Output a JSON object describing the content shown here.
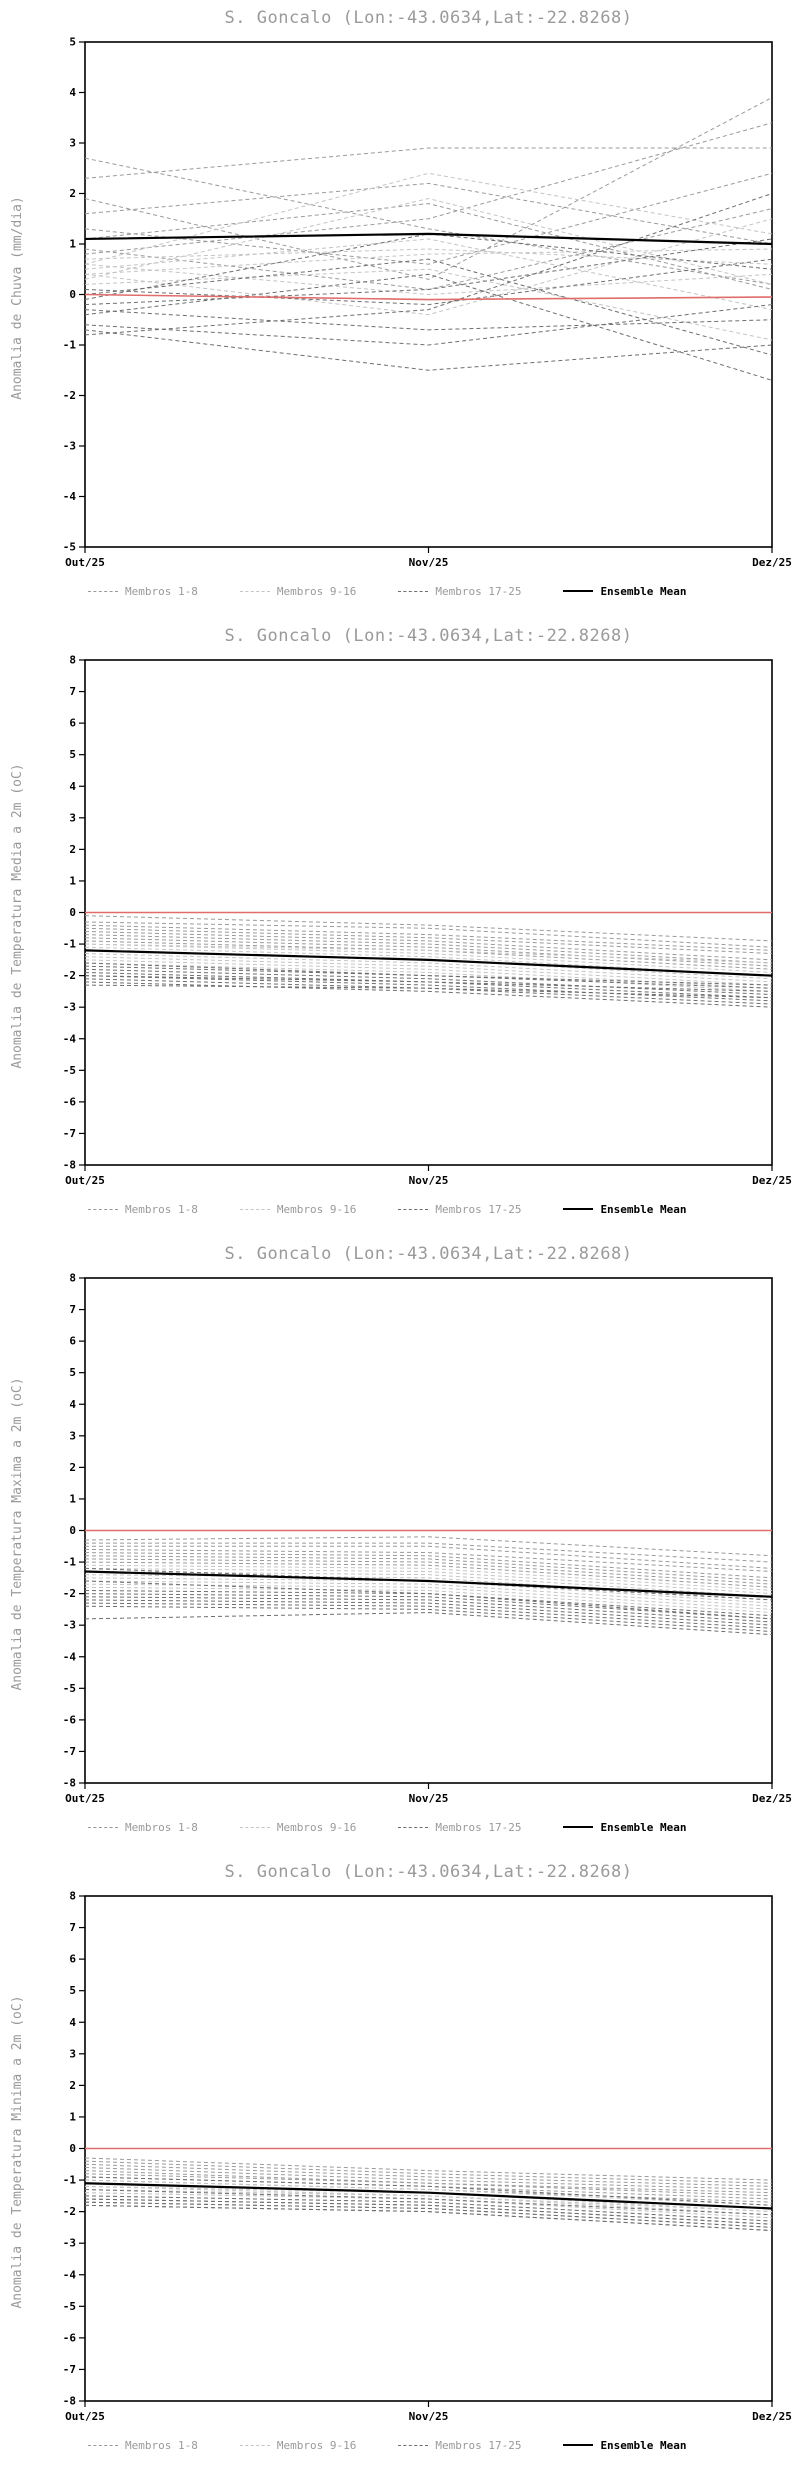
{
  "colors": {
    "title": "#9a9a9a",
    "axis": "#000000",
    "members_1_8": "#9a9a9a",
    "members_9_16": "#c4c4c4",
    "members_17_25": "#6e6e6e",
    "ensemble_mean": "#000000",
    "reference_line": "#e06c6c"
  },
  "chart_data": [
    {
      "type": "line",
      "title": "S. Goncalo (Lon:-43.0634,Lat:-22.8268)",
      "ylabel": "Anomalia de Chuva (mm/dia)",
      "xlabel": "",
      "x_ticklabels": [
        "Out/25",
        "Nov/25",
        "Dez/25"
      ],
      "ylim": [
        -5,
        5
      ],
      "ytick_step": 1,
      "grid": false,
      "legend_position": "bottom",
      "reference_line": [
        0.0,
        -0.1,
        -0.05
      ],
      "ensemble_mean": [
        1.1,
        1.2,
        1.0
      ],
      "legend": [
        {
          "label": "Membros 1-8"
        },
        {
          "label": "Membros 9-16"
        },
        {
          "label": "Membros 17-25"
        },
        {
          "label": "Ensemble Mean"
        }
      ],
      "members": {
        "members_1_8": [
          [
            2.7,
            1.3,
            0.2
          ],
          [
            2.3,
            2.9,
            2.9
          ],
          [
            1.9,
            0.3,
            3.9
          ],
          [
            1.6,
            2.2,
            1.0
          ],
          [
            1.3,
            0.6,
            2.4
          ],
          [
            1.1,
            1.8,
            0.1
          ],
          [
            0.9,
            0.1,
            1.7
          ],
          [
            0.8,
            1.5,
            3.4
          ]
        ],
        "members_9_16": [
          [
            0.7,
            0.9,
            0.6
          ],
          [
            0.6,
            2.4,
            1.2
          ],
          [
            0.6,
            0.0,
            0.4
          ],
          [
            0.5,
            1.1,
            -0.3
          ],
          [
            0.4,
            -0.4,
            1.5
          ],
          [
            0.4,
            0.8,
            0.9
          ],
          [
            0.3,
            1.9,
            0.2
          ],
          [
            0.2,
            0.5,
            -0.9
          ]
        ],
        "members_17_25": [
          [
            0.1,
            -0.2,
            0.7
          ],
          [
            0.0,
            0.7,
            -1.2
          ],
          [
            -0.1,
            1.2,
            0.5
          ],
          [
            -0.2,
            0.1,
            1.1
          ],
          [
            -0.3,
            -0.7,
            -0.5
          ],
          [
            -0.4,
            0.4,
            -1.7
          ],
          [
            -0.6,
            -1.0,
            -0.2
          ],
          [
            -0.7,
            -1.5,
            -1.0
          ],
          [
            -0.8,
            -0.3,
            2.0
          ]
        ]
      }
    },
    {
      "type": "line",
      "title": "S. Goncalo (Lon:-43.0634,Lat:-22.8268)",
      "ylabel": "Anomalia de Temperatura Media a 2m (oC)",
      "xlabel": "",
      "x_ticklabels": [
        "Out/25",
        "Nov/25",
        "Dez/25"
      ],
      "ylim": [
        -8,
        8
      ],
      "ytick_step": 1,
      "grid": false,
      "legend_position": "bottom",
      "reference_line": [
        0.0,
        0.0,
        0.0
      ],
      "ensemble_mean": [
        -1.2,
        -1.5,
        -2.0
      ],
      "legend": [
        {
          "label": "Membros 1-8"
        },
        {
          "label": "Membros 9-16"
        },
        {
          "label": "Membros 17-25"
        },
        {
          "label": "Ensemble Mean"
        }
      ],
      "members": {
        "members_1_8": [
          [
            -0.1,
            -0.4,
            -0.9
          ],
          [
            -0.3,
            -0.5,
            -1.1
          ],
          [
            -0.4,
            -0.7,
            -1.2
          ],
          [
            -0.5,
            -0.8,
            -1.3
          ],
          [
            -0.6,
            -0.9,
            -1.5
          ],
          [
            -0.7,
            -1.0,
            -1.6
          ],
          [
            -0.8,
            -1.1,
            -1.7
          ],
          [
            -0.9,
            -1.2,
            -1.8
          ]
        ],
        "members_9_16": [
          [
            -1.0,
            -1.2,
            -1.6
          ],
          [
            -1.0,
            -1.3,
            -1.9
          ],
          [
            -1.1,
            -1.4,
            -2.0
          ],
          [
            -1.2,
            -1.5,
            -2.1
          ],
          [
            -1.3,
            -1.6,
            -2.2
          ],
          [
            -1.4,
            -1.7,
            -2.3
          ],
          [
            -1.5,
            -1.8,
            -2.4
          ],
          [
            -1.6,
            -1.9,
            -2.5
          ]
        ],
        "members_17_25": [
          [
            -1.7,
            -2.0,
            -2.3
          ],
          [
            -1.8,
            -2.1,
            -2.6
          ],
          [
            -1.9,
            -2.2,
            -2.7
          ],
          [
            -2.0,
            -2.3,
            -2.8
          ],
          [
            -2.1,
            -2.4,
            -2.9
          ],
          [
            -2.2,
            -2.5,
            -3.0
          ],
          [
            -2.3,
            -2.4,
            -2.7
          ],
          [
            -2.0,
            -2.2,
            -2.5
          ],
          [
            -1.6,
            -2.0,
            -2.4
          ]
        ]
      }
    },
    {
      "type": "line",
      "title": "S. Goncalo (Lon:-43.0634,Lat:-22.8268)",
      "ylabel": "Anomalia de Temperatura Maxima a 2m (oC)",
      "xlabel": "",
      "x_ticklabels": [
        "Out/25",
        "Nov/25",
        "Dez/25"
      ],
      "ylim": [
        -8,
        8
      ],
      "ytick_step": 1,
      "grid": false,
      "legend_position": "bottom",
      "reference_line": [
        0.0,
        0.0,
        0.0
      ],
      "ensemble_mean": [
        -1.3,
        -1.6,
        -2.1
      ],
      "legend": [
        {
          "label": "Membros 1-8"
        },
        {
          "label": "Membros 9-16"
        },
        {
          "label": "Membros 17-25"
        },
        {
          "label": "Ensemble Mean"
        }
      ],
      "members": {
        "members_1_8": [
          [
            -0.3,
            -0.2,
            -0.8
          ],
          [
            -0.4,
            -0.4,
            -1.0
          ],
          [
            -0.5,
            -0.5,
            -1.2
          ],
          [
            -0.6,
            -0.7,
            -1.3
          ],
          [
            -0.7,
            -0.8,
            -1.5
          ],
          [
            -0.8,
            -0.9,
            -1.6
          ],
          [
            -0.9,
            -1.0,
            -1.7
          ],
          [
            -1.0,
            -1.1,
            -1.8
          ]
        ],
        "members_9_16": [
          [
            -1.1,
            -1.2,
            -1.9
          ],
          [
            -1.2,
            -1.3,
            -2.0
          ],
          [
            -1.3,
            -1.4,
            -2.1
          ],
          [
            -1.4,
            -1.5,
            -2.2
          ],
          [
            -1.5,
            -1.6,
            -2.3
          ],
          [
            -1.6,
            -1.7,
            -2.4
          ],
          [
            -1.7,
            -1.8,
            -2.5
          ],
          [
            -1.8,
            -1.9,
            -2.6
          ]
        ],
        "members_17_25": [
          [
            -1.9,
            -2.0,
            -2.7
          ],
          [
            -2.0,
            -2.1,
            -2.8
          ],
          [
            -2.1,
            -2.2,
            -2.9
          ],
          [
            -2.2,
            -2.3,
            -3.0
          ],
          [
            -2.3,
            -2.4,
            -3.1
          ],
          [
            -2.4,
            -2.5,
            -3.2
          ],
          [
            -2.8,
            -2.6,
            -3.3
          ],
          [
            -1.6,
            -2.0,
            -2.8
          ],
          [
            -1.2,
            -1.6,
            -2.2
          ]
        ]
      }
    },
    {
      "type": "line",
      "title": "S. Goncalo (Lon:-43.0634,Lat:-22.8268)",
      "ylabel": "Anomalia de Temperatura Minima a 2m (oC)",
      "xlabel": "",
      "x_ticklabels": [
        "Out/25",
        "Nov/25",
        "Dez/25"
      ],
      "ylim": [
        -8,
        8
      ],
      "ytick_step": 1,
      "grid": false,
      "legend_position": "bottom",
      "reference_line": [
        0.0,
        0.0,
        0.0
      ],
      "ensemble_mean": [
        -1.1,
        -1.4,
        -1.9
      ],
      "legend": [
        {
          "label": "Membros 1-8"
        },
        {
          "label": "Membros 9-16"
        },
        {
          "label": "Membros 17-25"
        },
        {
          "label": "Ensemble Mean"
        }
      ],
      "members": {
        "members_1_8": [
          [
            -0.3,
            -0.7,
            -1.0
          ],
          [
            -0.4,
            -0.8,
            -1.1
          ],
          [
            -0.5,
            -0.9,
            -1.2
          ],
          [
            -0.6,
            -1.0,
            -1.3
          ],
          [
            -0.7,
            -1.1,
            -1.4
          ],
          [
            -0.8,
            -1.1,
            -1.5
          ],
          [
            -0.9,
            -1.2,
            -1.6
          ],
          [
            -1.0,
            -1.3,
            -1.7
          ]
        ],
        "members_9_16": [
          [
            -1.0,
            -1.3,
            -1.8
          ],
          [
            -1.1,
            -1.4,
            -1.9
          ],
          [
            -1.2,
            -1.4,
            -2.0
          ],
          [
            -1.2,
            -1.5,
            -2.0
          ],
          [
            -1.3,
            -1.5,
            -2.1
          ],
          [
            -1.4,
            -1.6,
            -2.2
          ],
          [
            -1.4,
            -1.6,
            -2.2
          ],
          [
            -1.5,
            -1.7,
            -2.3
          ]
        ],
        "members_17_25": [
          [
            -1.5,
            -1.7,
            -2.3
          ],
          [
            -1.6,
            -1.8,
            -2.4
          ],
          [
            -1.6,
            -1.8,
            -2.4
          ],
          [
            -1.7,
            -1.9,
            -2.5
          ],
          [
            -1.7,
            -1.9,
            -2.5
          ],
          [
            -1.8,
            -2.0,
            -2.6
          ],
          [
            -1.8,
            -2.0,
            -2.6
          ],
          [
            -1.3,
            -1.6,
            -2.1
          ],
          [
            -0.9,
            -1.2,
            -1.8
          ]
        ]
      }
    }
  ]
}
